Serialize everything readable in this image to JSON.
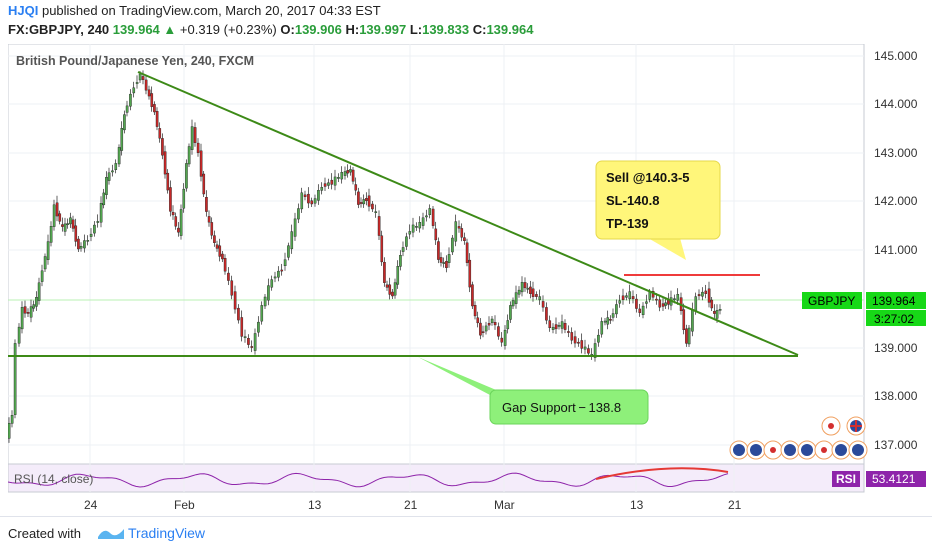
{
  "header": {
    "user": "HJQI",
    "published_text": "published on TradingView.com, March 20, 2017 04:33 EST",
    "symbol": "FX:GBPJPY, 240",
    "change": "139.964",
    "change_arrow": "▲",
    "change_delta": "+0.319 (+0.23%)",
    "open_label": "O:",
    "open": "139.906",
    "high_label": "H:",
    "high": "139.997",
    "low_label": "L:",
    "low": "139.833",
    "close_label": "C:",
    "close": "139.964"
  },
  "chart": {
    "title": "British Pound/Japanese Yen, 240, FXCM",
    "price_ticks": [
      "145.000",
      "144.000",
      "143.000",
      "142.000",
      "141.000",
      "139.000",
      "138.000",
      "137.000"
    ],
    "date_ticks": [
      "24",
      "Feb",
      "13",
      "21",
      "Mar",
      "13",
      "21"
    ],
    "symbol_tag": "GBPJPY",
    "last_price": "139.964",
    "countdown": "3:27:02",
    "annotation_sell": [
      "Sell @140.3-5",
      "SL-140.8",
      "TP-139"
    ],
    "annotation_gap": "Gap Support − 138.8",
    "rsi_label": "RSI (14, close)",
    "rsi_tag": "RSI",
    "rsi_value": "53.4121"
  },
  "colors": {
    "up_candle": "#53a550",
    "down_candle": "#c62828",
    "trendline": "#3d8a17",
    "resistance": "#ef3b3b",
    "sell_box": "#fff67a",
    "gap_box": "#8ef07a",
    "price_tag": "#17d817",
    "rsi_tag": "#8e24aa",
    "brand": "#2a7ff2"
  },
  "footer": {
    "created_with": "Created with",
    "brand": "TradingView"
  }
}
